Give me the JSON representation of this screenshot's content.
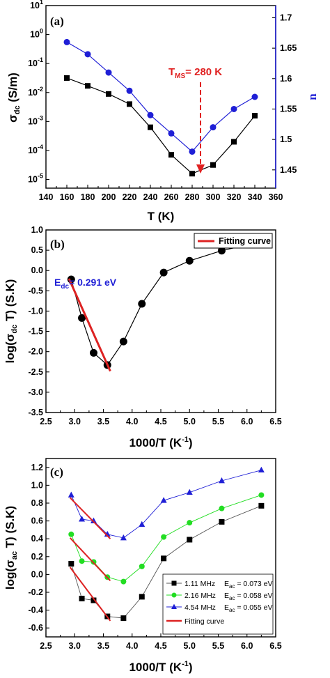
{
  "colors": {
    "black": "#000000",
    "blue": "#1f1fd6",
    "red": "#e02020",
    "green": "#22dd22",
    "fit": "#dd2222"
  },
  "annotations": {
    "tms_prefix": "T",
    "tms_sub": "MS",
    "tms_value": "= 280 K",
    "edc_prefix": "E",
    "edc_sub": "dc",
    "edc_value": "= 0.291 eV",
    "eac_prefix": "E",
    "eac_sub": "ac"
  },
  "chart_data": [
    {
      "type": "line",
      "panel": "(a)",
      "x": [
        160,
        180,
        200,
        220,
        240,
        260,
        280,
        300,
        320,
        340
      ],
      "xlabel": "T (K)",
      "ylabel_main": "σ",
      "ylabel_sub": "dc",
      "ylabel_unit": " (S/m)",
      "y2label": "n",
      "xlim": [
        140,
        360
      ],
      "xticks": [
        "140",
        "160",
        "180",
        "200",
        "220",
        "240",
        "260",
        "280",
        "300",
        "320",
        "340",
        "360"
      ],
      "ylim_log10": [
        -5.3,
        1
      ],
      "yticks_base": "10",
      "yticks_exp": [
        "-5",
        "-4",
        "-3",
        "-2",
        "-1",
        "0",
        "1"
      ],
      "y2lim": [
        1.42,
        1.72
      ],
      "y2ticks": [
        "1.45",
        "1.5",
        "1.55",
        "1.6",
        "1.65",
        "1.7"
      ],
      "series": [
        {
          "axis": "left",
          "marker": "square",
          "color": "#000000",
          "values_log10": [
            -1.5,
            -1.77,
            -2.05,
            -2.4,
            -3.2,
            -4.15,
            -4.8,
            -4.5,
            -3.7,
            -2.8
          ]
        },
        {
          "axis": "right",
          "marker": "circle",
          "color": "#1f1fd6",
          "values": [
            1.66,
            1.64,
            1.61,
            1.58,
            1.54,
            1.51,
            1.48,
            1.52,
            1.55,
            1.57
          ]
        }
      ]
    },
    {
      "type": "line",
      "panel": "(b)",
      "xlabel": "1000/T (K",
      "xlabel_sup": "-1",
      "xlabel_tail": ")",
      "ylabel_pre": "log(σ",
      "ylabel_sub": "dc",
      "ylabel_post": " T) (S.K)",
      "xlim": [
        2.5,
        6.5
      ],
      "xticks": [
        "2.5",
        "3.0",
        "3.5",
        "4.0",
        "4.5",
        "5.0",
        "5.5",
        "6.0",
        "6.5"
      ],
      "ylim": [
        -3.5,
        1
      ],
      "yticks": [
        "-3.5",
        "-3.0",
        "-2.5",
        "-2.0",
        "-1.5",
        "-1.0",
        "-0.5",
        "0.0",
        "0.5",
        "1.0"
      ],
      "legend": [
        "Fitting curve"
      ],
      "series": [
        {
          "marker": "circle",
          "color": "#000000",
          "x": [
            2.94,
            3.125,
            3.33,
            3.57,
            3.85,
            4.17,
            4.55,
            5.0,
            5.56,
            6.25
          ],
          "y": [
            -0.22,
            -1.17,
            -2.03,
            -2.33,
            -1.75,
            -0.82,
            -0.05,
            0.24,
            0.49,
            0.71
          ]
        }
      ],
      "fit": {
        "x": [
          2.9,
          3.62
        ],
        "y": [
          -0.2,
          -2.48
        ]
      }
    },
    {
      "type": "line",
      "panel": "(c)",
      "xlabel": "1000/T (K",
      "xlabel_sup": "-1",
      "xlabel_tail": ")",
      "ylabel_pre": "log(σ",
      "ylabel_sub": "ac",
      "ylabel_post": " T) (S.K)",
      "xlim": [
        2.5,
        6.5
      ],
      "xticks": [
        "2.5",
        "3.0",
        "3.5",
        "4.0",
        "4.5",
        "5.0",
        "5.5",
        "6.0",
        "6.5"
      ],
      "ylim": [
        -0.7,
        1.3
      ],
      "yticks": [
        "-0.6",
        "-0.4",
        "-0.2",
        "0.0",
        "0.2",
        "0.4",
        "0.6",
        "0.8",
        "1.0",
        "1.2"
      ],
      "legend": [
        "1.11 MHz",
        "2.16 MHz",
        "4.54 MHz",
        "Fitting curve"
      ],
      "series": [
        {
          "name": "1.11 MHz",
          "activation": "= 0.073 eV",
          "marker": "square",
          "color": "#000000",
          "x": [
            2.94,
            3.125,
            3.33,
            3.57,
            3.85,
            4.17,
            4.55,
            5.0,
            5.56,
            6.25
          ],
          "y": [
            0.12,
            -0.27,
            -0.29,
            -0.47,
            -0.49,
            -0.25,
            0.18,
            0.39,
            0.59,
            0.77
          ]
        },
        {
          "name": "2.16 MHz",
          "activation": "= 0.058 eV",
          "marker": "circle",
          "color": "#22dd22",
          "x": [
            2.94,
            3.125,
            3.33,
            3.57,
            3.85,
            4.17,
            4.55,
            5.0,
            5.56,
            6.25
          ],
          "y": [
            0.45,
            0.15,
            0.14,
            -0.03,
            -0.08,
            0.09,
            0.42,
            0.58,
            0.74,
            0.89
          ]
        },
        {
          "name": "4.54 MHz",
          "activation": "= 0.055 eV",
          "marker": "triangle",
          "color": "#1f1fd6",
          "x": [
            2.94,
            3.125,
            3.33,
            3.57,
            3.85,
            4.17,
            4.55,
            5.0,
            5.56,
            6.25
          ],
          "y": [
            0.89,
            0.62,
            0.6,
            0.45,
            0.41,
            0.56,
            0.83,
            0.92,
            1.05,
            1.17
          ]
        }
      ],
      "fits": [
        {
          "x": [
            2.92,
            3.62
          ],
          "y": [
            0.86,
            0.4
          ]
        },
        {
          "x": [
            2.92,
            3.62
          ],
          "y": [
            0.41,
            -0.07
          ]
        },
        {
          "x": [
            2.92,
            3.62
          ],
          "y": [
            0.08,
            -0.52
          ]
        }
      ]
    }
  ]
}
